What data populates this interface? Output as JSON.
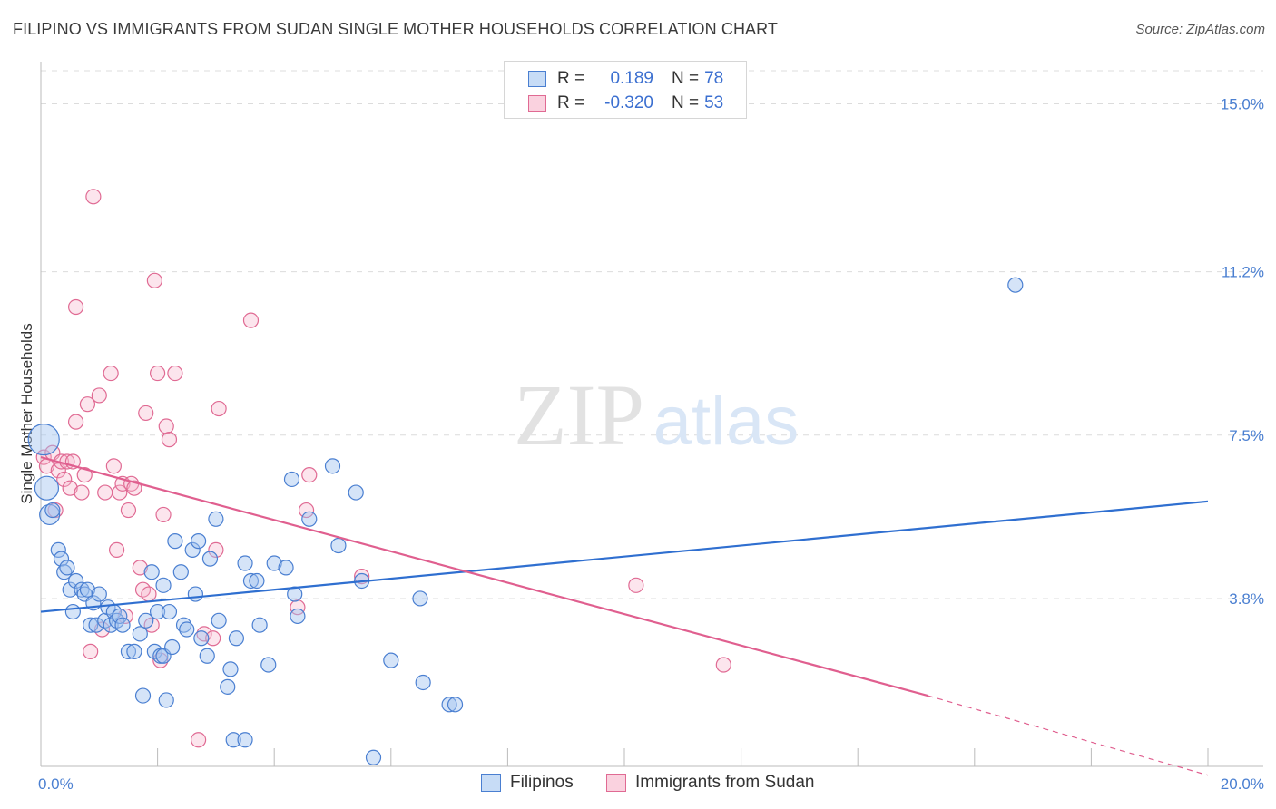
{
  "title": "FILIPINO VS IMMIGRANTS FROM SUDAN SINGLE MOTHER HOUSEHOLDS CORRELATION CHART",
  "source": "Source: ZipAtlas.com",
  "watermark": {
    "zip": "ZIP",
    "atlas": "atlas"
  },
  "colors": {
    "blue": "#4a7fd1",
    "blue_fill": "rgba(162,196,240,0.45)",
    "blue_line": "#2f6fd0",
    "pink": "#e06a93",
    "pink_fill": "rgba(246,180,202,0.35)",
    "pink_line": "#e05f8f",
    "grid": "#dcdcdc"
  },
  "legend_top": {
    "rows": [
      {
        "r_label": "R =",
        "r_value": "0.189",
        "n_label": "N =",
        "n_value": "78"
      },
      {
        "r_label": "R =",
        "r_value": "-0.320",
        "n_label": "N =",
        "n_value": "53"
      }
    ]
  },
  "legend_bottom": [
    "Filipinos",
    "Immigrants from Sudan"
  ],
  "chart_data": {
    "type": "scatter",
    "title": "FILIPINO VS IMMIGRANTS FROM SUDAN SINGLE MOTHER HOUSEHOLDS CORRELATION CHART",
    "xlabel": "",
    "ylabel": "Single Mother Households",
    "xlim": [
      0,
      20
    ],
    "ylim": [
      0,
      15.75
    ],
    "x_tick_labels": [
      "0.0%",
      "20.0%"
    ],
    "y_ticks": [
      3.8,
      7.5,
      11.2,
      15.0
    ],
    "y_tick_labels": [
      "3.8%",
      "7.5%",
      "11.2%",
      "15.0%"
    ],
    "grid": true,
    "legend_placement": "top-center",
    "series": [
      {
        "name": "Filipinos",
        "r": 0.189,
        "n": 78,
        "trend": {
          "x0": 0,
          "y0": 3.5,
          "x1": 20,
          "y1": 6.0
        },
        "points": [
          [
            0.05,
            7.4
          ],
          [
            0.1,
            6.3
          ],
          [
            0.15,
            5.7
          ],
          [
            0.2,
            5.8
          ],
          [
            0.3,
            4.9
          ],
          [
            0.35,
            4.7
          ],
          [
            0.4,
            4.4
          ],
          [
            0.45,
            4.5
          ],
          [
            0.5,
            4.0
          ],
          [
            0.6,
            4.2
          ],
          [
            0.55,
            3.5
          ],
          [
            0.7,
            4.0
          ],
          [
            0.75,
            3.9
          ],
          [
            0.8,
            4.0
          ],
          [
            0.85,
            3.2
          ],
          [
            0.9,
            3.7
          ],
          [
            0.95,
            3.2
          ],
          [
            1.0,
            3.9
          ],
          [
            1.1,
            3.3
          ],
          [
            1.15,
            3.6
          ],
          [
            1.2,
            3.2
          ],
          [
            1.25,
            3.5
          ],
          [
            1.3,
            3.3
          ],
          [
            1.35,
            3.4
          ],
          [
            1.4,
            3.2
          ],
          [
            1.5,
            2.6
          ],
          [
            1.6,
            2.6
          ],
          [
            1.7,
            3.0
          ],
          [
            1.75,
            1.6
          ],
          [
            1.8,
            3.3
          ],
          [
            1.9,
            4.4
          ],
          [
            1.95,
            2.6
          ],
          [
            2.0,
            3.5
          ],
          [
            2.05,
            2.5
          ],
          [
            2.1,
            4.1
          ],
          [
            2.1,
            2.5
          ],
          [
            2.15,
            1.5
          ],
          [
            2.2,
            3.5
          ],
          [
            2.25,
            2.7
          ],
          [
            2.3,
            5.1
          ],
          [
            2.4,
            4.4
          ],
          [
            2.45,
            3.2
          ],
          [
            2.5,
            3.1
          ],
          [
            2.6,
            4.9
          ],
          [
            2.65,
            3.9
          ],
          [
            2.7,
            5.1
          ],
          [
            2.75,
            2.9
          ],
          [
            2.85,
            2.5
          ],
          [
            2.9,
            4.7
          ],
          [
            3.0,
            5.6
          ],
          [
            3.05,
            3.3
          ],
          [
            3.2,
            1.8
          ],
          [
            3.25,
            2.2
          ],
          [
            3.3,
            0.6
          ],
          [
            3.35,
            2.9
          ],
          [
            3.5,
            0.6
          ],
          [
            3.5,
            4.6
          ],
          [
            3.6,
            4.2
          ],
          [
            3.7,
            4.2
          ],
          [
            3.75,
            3.2
          ],
          [
            3.9,
            2.3
          ],
          [
            4.0,
            4.6
          ],
          [
            4.2,
            4.5
          ],
          [
            4.3,
            6.5
          ],
          [
            4.35,
            3.9
          ],
          [
            4.4,
            3.4
          ],
          [
            4.6,
            5.6
          ],
          [
            5.0,
            6.8
          ],
          [
            5.1,
            5.0
          ],
          [
            5.4,
            6.2
          ],
          [
            5.5,
            4.2
          ],
          [
            5.7,
            0.2
          ],
          [
            6.0,
            2.4
          ],
          [
            6.5,
            3.8
          ],
          [
            6.55,
            1.9
          ],
          [
            7.0,
            1.4
          ],
          [
            7.1,
            1.4
          ],
          [
            16.7,
            10.9
          ]
        ]
      },
      {
        "name": "Immigrants from Sudan",
        "r": -0.32,
        "n": 53,
        "trend": {
          "x0": 0,
          "y0": 7.0,
          "x1": 15.2,
          "y1": 1.6,
          "dash_to_x": 20,
          "dash_to_y": -0.2
        },
        "points": [
          [
            0.05,
            7.0
          ],
          [
            0.1,
            6.8
          ],
          [
            0.2,
            7.1
          ],
          [
            0.25,
            5.8
          ],
          [
            0.3,
            6.7
          ],
          [
            0.35,
            6.9
          ],
          [
            0.4,
            6.5
          ],
          [
            0.45,
            6.9
          ],
          [
            0.5,
            6.3
          ],
          [
            0.55,
            6.9
          ],
          [
            0.6,
            7.8
          ],
          [
            0.6,
            10.4
          ],
          [
            0.7,
            6.2
          ],
          [
            0.75,
            6.6
          ],
          [
            0.8,
            8.2
          ],
          [
            0.85,
            2.6
          ],
          [
            0.9,
            12.9
          ],
          [
            1.0,
            8.4
          ],
          [
            1.05,
            3.1
          ],
          [
            1.1,
            6.2
          ],
          [
            1.2,
            8.9
          ],
          [
            1.25,
            6.8
          ],
          [
            1.3,
            4.9
          ],
          [
            1.35,
            6.2
          ],
          [
            1.4,
            6.4
          ],
          [
            1.45,
            3.4
          ],
          [
            1.5,
            5.8
          ],
          [
            1.55,
            6.4
          ],
          [
            1.6,
            6.3
          ],
          [
            1.7,
            4.5
          ],
          [
            1.75,
            4.0
          ],
          [
            1.8,
            8.0
          ],
          [
            1.85,
            3.9
          ],
          [
            1.9,
            3.2
          ],
          [
            1.95,
            11.0
          ],
          [
            2.0,
            8.9
          ],
          [
            2.05,
            2.4
          ],
          [
            2.1,
            5.7
          ],
          [
            2.15,
            7.7
          ],
          [
            2.2,
            7.4
          ],
          [
            2.3,
            8.9
          ],
          [
            2.7,
            0.6
          ],
          [
            2.8,
            3.0
          ],
          [
            2.95,
            2.9
          ],
          [
            3.0,
            4.9
          ],
          [
            3.05,
            8.1
          ],
          [
            3.6,
            10.1
          ],
          [
            4.4,
            3.6
          ],
          [
            4.55,
            5.8
          ],
          [
            4.6,
            6.6
          ],
          [
            5.5,
            4.3
          ],
          [
            10.2,
            4.1
          ],
          [
            11.7,
            2.3
          ]
        ]
      }
    ]
  }
}
